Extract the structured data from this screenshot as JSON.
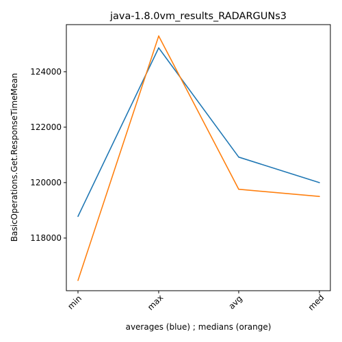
{
  "chart_data": {
    "type": "line",
    "title": "java-1.8.0vm_results_RADARGUNs3",
    "xlabel": "averages (blue) ; medians (orange)",
    "ylabel": "BasicOperations.Get.ResponseTimeMean",
    "categories": [
      "min",
      "max",
      "avg",
      "med"
    ],
    "y_ticks": [
      118000,
      120000,
      122000,
      124000
    ],
    "y_tick_labels": [
      "118000",
      "120000",
      "122000",
      "124000"
    ],
    "ylim": [
      116100,
      125700
    ],
    "grid": false,
    "series": [
      {
        "color": "#1f77b4",
        "values": [
          118780,
          124860,
          120920,
          120000
        ]
      },
      {
        "color": "#ff7f0e",
        "values": [
          116470,
          125290,
          119760,
          119500
        ]
      }
    ]
  }
}
